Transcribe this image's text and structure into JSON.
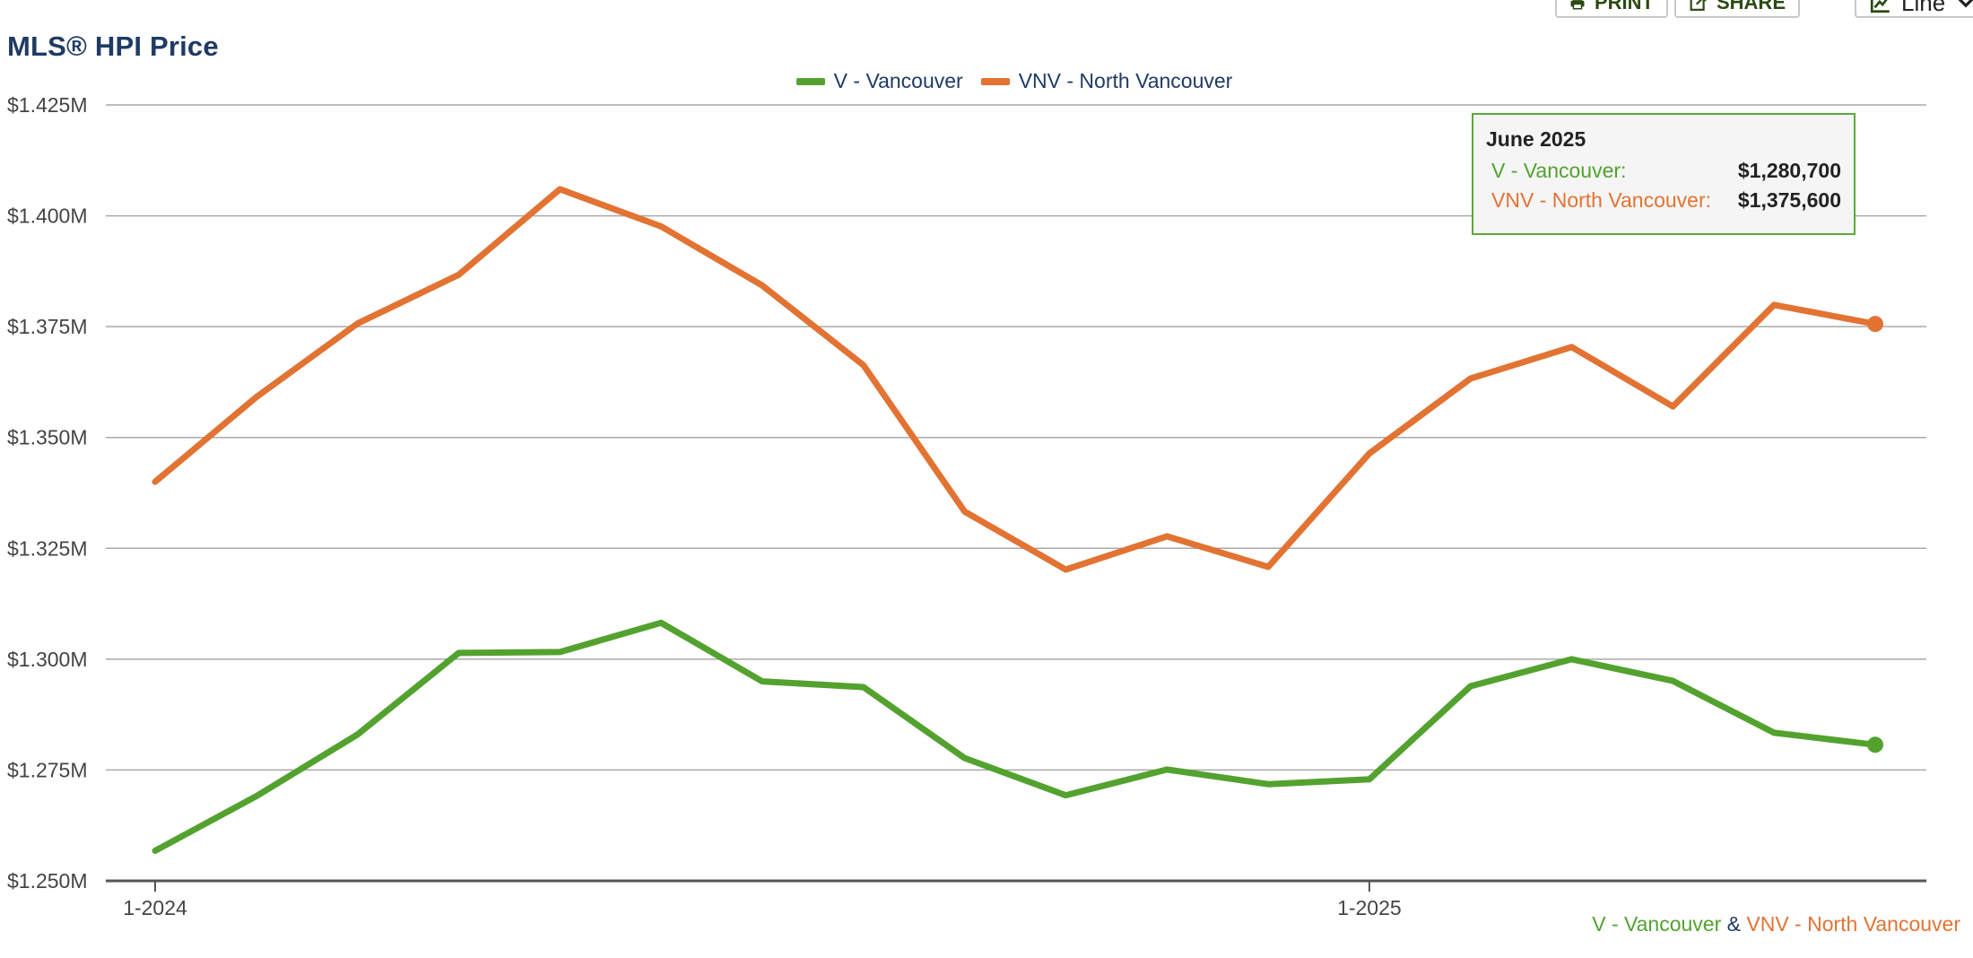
{
  "toolbar": {
    "print_label": "PRINT",
    "share_label": "SHARE",
    "chart_type_label": "Line"
  },
  "colors": {
    "vancouver": "#53a22f",
    "north_vancouver": "#e27333",
    "title": "#1f3b64",
    "grid": "#a9a9a9",
    "axis": "#555555"
  },
  "tooltip": {
    "title": "June 2025",
    "rows": [
      {
        "label": "V - Vancouver:",
        "value": "$1,280,700"
      },
      {
        "label": "VNV - North Vancouver:",
        "value": "$1,375,600"
      }
    ]
  },
  "footer": {
    "series1": "V - Vancouver",
    "joiner": "&",
    "series2": "VNV - North Vancouver"
  },
  "chart_data": {
    "type": "line",
    "title": "MLS® HPI Price",
    "xlabel": "",
    "ylabel": "",
    "x": [
      "1-2024",
      "2-2024",
      "3-2024",
      "4-2024",
      "5-2024",
      "6-2024",
      "7-2024",
      "8-2024",
      "9-2024",
      "10-2024",
      "11-2024",
      "12-2024",
      "1-2025",
      "2-2025",
      "3-2025",
      "4-2025",
      "5-2025",
      "6-2025"
    ],
    "x_tick_labels": [
      "1-2024",
      "1-2025"
    ],
    "y_ticks": [
      1250000,
      1275000,
      1300000,
      1325000,
      1350000,
      1375000,
      1400000,
      1425000
    ],
    "y_tick_labels": [
      "$1.250M",
      "$1.275M",
      "$1.300M",
      "$1.325M",
      "$1.350M",
      "$1.375M",
      "$1.400M",
      "$1.425M"
    ],
    "ylim": [
      1250000,
      1425000
    ],
    "grid": true,
    "legend_position": "top-center",
    "series": [
      {
        "name": "V - Vancouver",
        "color": "#53a22f",
        "values": [
          1256800,
          1269100,
          1283000,
          1301400,
          1301600,
          1308200,
          1295000,
          1293700,
          1277700,
          1269300,
          1275100,
          1271800,
          1272900,
          1293900,
          1300000,
          1295100,
          1283400,
          1280700
        ]
      },
      {
        "name": "VNV - North Vancouver",
        "color": "#e27333",
        "values": [
          1340000,
          1359100,
          1375700,
          1386700,
          1406000,
          1397600,
          1384300,
          1366300,
          1333300,
          1320200,
          1327700,
          1320800,
          1346400,
          1363300,
          1370400,
          1357000,
          1379900,
          1375600
        ]
      }
    ]
  }
}
